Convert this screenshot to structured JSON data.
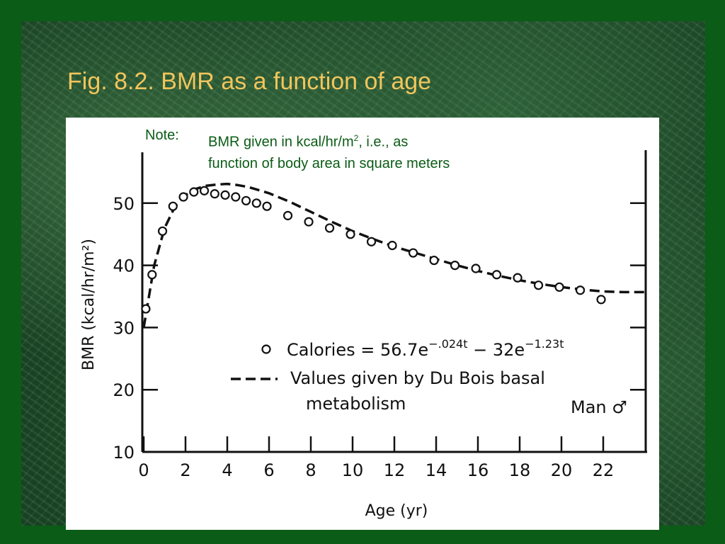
{
  "slide": {
    "title": "Fig. 8.2.  BMR as a function of age",
    "note_label": "Note:",
    "note_line1_pre": "BMR given in kcal/hr/m",
    "note_line1_sup": "2",
    "note_line1_post": ", i.e., as",
    "note_line2": "function of body area in square meters"
  },
  "colors": {
    "title": "#f2c55c",
    "note": "#0b5c16",
    "background": "#0b5c16"
  },
  "chart_data": {
    "type": "scatter",
    "xlabel": "Age (yr)",
    "ylabel": "BMR (kcal/hr/m²)",
    "xlim": [
      0,
      24
    ],
    "ylim": [
      10,
      60
    ],
    "x_ticks": [
      0,
      2,
      4,
      6,
      8,
      10,
      12,
      14,
      16,
      18,
      20,
      22
    ],
    "y_ticks": [
      10,
      20,
      30,
      40,
      50
    ],
    "legend": {
      "marker_label": "Calories = 56.7e",
      "exp1": "−.024t",
      "minus": " − 32e",
      "exp2": "−1.23t",
      "dashed_label_1": "Values given by Du Bois basal",
      "dashed_label_2": "metabolism",
      "placement": "center-right"
    },
    "annotation": "Man ♂",
    "series": [
      {
        "name": "Calories = 56.7e−.024t − 32e−1.23t",
        "style": "open-circle",
        "x": [
          0.1,
          0.4,
          0.9,
          1.4,
          1.9,
          2.4,
          2.9,
          3.4,
          3.9,
          4.4,
          4.9,
          5.4,
          5.9,
          6.9,
          7.9,
          8.9,
          9.9,
          10.9,
          11.9,
          12.9,
          13.9,
          14.9,
          15.9,
          16.9,
          17.9,
          18.9,
          19.9,
          20.9,
          21.9
        ],
        "y": [
          33,
          38.5,
          45.5,
          49.5,
          51,
          51.8,
          52,
          51.5,
          51.3,
          51,
          50.4,
          50,
          49.5,
          48,
          47,
          46,
          45,
          43.8,
          43.2,
          42,
          40.8,
          40,
          39.5,
          38.5,
          38,
          36.8,
          36.5,
          36,
          34.5
        ]
      },
      {
        "name": "Values given by Du Bois basal metabolism",
        "style": "dashed-line",
        "x": [
          0,
          0.2,
          0.5,
          1,
          1.5,
          2,
          2.5,
          3,
          3.5,
          4,
          4.5,
          5,
          6,
          7,
          8,
          9,
          10,
          11,
          12,
          13,
          14,
          15,
          16,
          17,
          18,
          19,
          20,
          21,
          22,
          23,
          24
        ],
        "y": [
          30,
          34,
          40,
          46,
          49.5,
          51.3,
          52.3,
          52.8,
          53,
          53.1,
          52.9,
          52.6,
          51.6,
          50.2,
          48.6,
          47,
          45.5,
          44.2,
          43,
          42,
          41,
          40,
          39.1,
          38.3,
          37.6,
          37,
          36.5,
          36.1,
          35.8,
          35.7,
          35.7
        ]
      }
    ]
  }
}
